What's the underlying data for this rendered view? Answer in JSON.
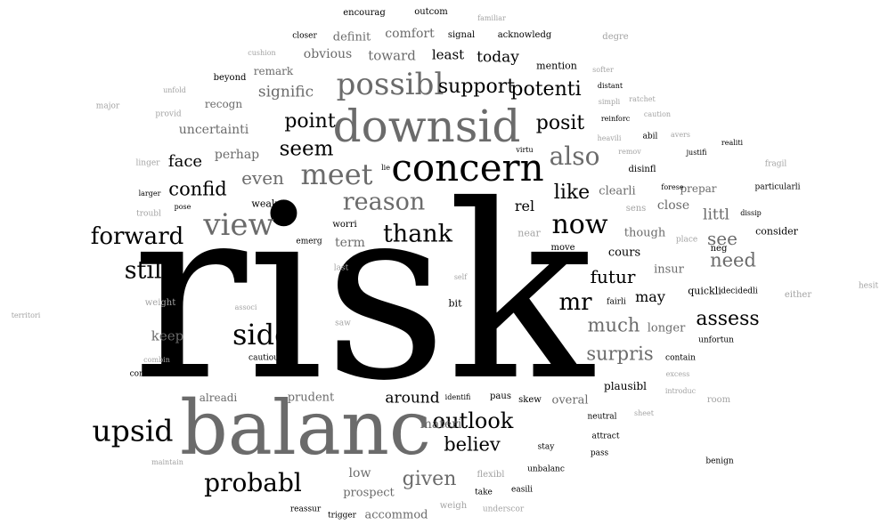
{
  "words": [
    {
      "text": "risk",
      "shade": "k"
    },
    {
      "text": "balanc",
      "shade": "g"
    },
    {
      "text": "downsid",
      "shade": "g"
    },
    {
      "text": "concern",
      "shade": "k"
    },
    {
      "text": "possibl",
      "shade": "g"
    },
    {
      "text": "meet",
      "shade": "g"
    },
    {
      "text": "view",
      "shade": "g"
    },
    {
      "text": "upsid",
      "shade": "k"
    },
    {
      "text": "reason",
      "shade": "g"
    },
    {
      "text": "thank",
      "shade": "k"
    },
    {
      "text": "now",
      "shade": "k"
    },
    {
      "text": "also",
      "shade": "g"
    },
    {
      "text": "forward",
      "shade": "k"
    },
    {
      "text": "side",
      "shade": "k"
    },
    {
      "text": "probabl",
      "shade": "k"
    },
    {
      "text": "outlook",
      "shade": "k"
    },
    {
      "text": "seem",
      "shade": "k"
    },
    {
      "text": "support",
      "shade": "k"
    },
    {
      "text": "potenti",
      "shade": "k"
    },
    {
      "text": "posit",
      "shade": "k"
    },
    {
      "text": "point",
      "shade": "k"
    },
    {
      "text": "confid",
      "shade": "k"
    },
    {
      "text": "even",
      "shade": "g"
    },
    {
      "text": "still",
      "shade": "k"
    },
    {
      "text": "assess",
      "shade": "k"
    },
    {
      "text": "much",
      "shade": "g"
    },
    {
      "text": "mr",
      "shade": "k"
    },
    {
      "text": "like",
      "shade": "k"
    },
    {
      "text": "need",
      "shade": "g"
    },
    {
      "text": "surpris",
      "shade": "g"
    },
    {
      "text": "see",
      "shade": "g"
    },
    {
      "text": "futur",
      "shade": "k"
    },
    {
      "text": "believ",
      "shade": "k"
    },
    {
      "text": "given",
      "shade": "g"
    },
    {
      "text": "face",
      "shade": "k"
    },
    {
      "text": "signific",
      "shade": "g"
    },
    {
      "text": "today",
      "shade": "k"
    },
    {
      "text": "around",
      "shade": "k"
    },
    {
      "text": "littl",
      "shade": "g"
    },
    {
      "text": "rel",
      "shade": "k"
    },
    {
      "text": "keep",
      "shade": "g"
    },
    {
      "text": "may",
      "shade": "k"
    },
    {
      "text": "uncertainti",
      "shade": "g"
    },
    {
      "text": "perhap",
      "shade": "g"
    },
    {
      "text": "toward",
      "shade": "g"
    },
    {
      "text": "least",
      "shade": "k"
    },
    {
      "text": "comfort",
      "shade": "g"
    },
    {
      "text": "obvious",
      "shade": "g"
    },
    {
      "text": "remark",
      "shade": "g"
    },
    {
      "text": "recogn",
      "shade": "g"
    },
    {
      "text": "definit",
      "shade": "g"
    },
    {
      "text": "term",
      "shade": "g"
    },
    {
      "text": "prudent",
      "shade": "g"
    },
    {
      "text": "alreadi",
      "shade": "g"
    },
    {
      "text": "materi",
      "shade": "g"
    },
    {
      "text": "overal",
      "shade": "g"
    },
    {
      "text": "low",
      "shade": "g"
    },
    {
      "text": "prospect",
      "shade": "g"
    },
    {
      "text": "accommod",
      "shade": "g"
    },
    {
      "text": "close",
      "shade": "g"
    },
    {
      "text": "clearli",
      "shade": "g"
    },
    {
      "text": "prepar",
      "shade": "g"
    },
    {
      "text": "though",
      "shade": "g"
    },
    {
      "text": "longer",
      "shade": "g"
    },
    {
      "text": "insur",
      "shade": "g"
    },
    {
      "text": "cours",
      "shade": "k"
    },
    {
      "text": "plausibl",
      "shade": "k"
    },
    {
      "text": "quickli",
      "shade": "k"
    },
    {
      "text": "consider",
      "shade": "k"
    },
    {
      "text": "mention",
      "shade": "k"
    },
    {
      "text": "acknowledg",
      "shade": "k"
    },
    {
      "text": "signal",
      "shade": "k"
    },
    {
      "text": "encourag",
      "shade": "k"
    },
    {
      "text": "outcom",
      "shade": "k"
    },
    {
      "text": "closer",
      "shade": "k"
    },
    {
      "text": "beyond",
      "shade": "k"
    },
    {
      "text": "lie",
      "shade": "k"
    },
    {
      "text": "weak",
      "shade": "k"
    },
    {
      "text": "worri",
      "shade": "k"
    },
    {
      "text": "emerg",
      "shade": "k"
    },
    {
      "text": "bit",
      "shade": "k"
    },
    {
      "text": "cautiou",
      "shade": "k"
    },
    {
      "text": "identifi",
      "shade": "k"
    },
    {
      "text": "paus",
      "shade": "k"
    },
    {
      "text": "skew",
      "shade": "k"
    },
    {
      "text": "stay",
      "shade": "k"
    },
    {
      "text": "unbalanc",
      "shade": "k"
    },
    {
      "text": "take",
      "shade": "k"
    },
    {
      "text": "easili",
      "shade": "k"
    },
    {
      "text": "reassur",
      "shade": "k"
    },
    {
      "text": "trigger",
      "shade": "k"
    },
    {
      "text": "neutral",
      "shade": "k"
    },
    {
      "text": "attract",
      "shade": "k"
    },
    {
      "text": "pass",
      "shade": "k"
    },
    {
      "text": "benign",
      "shade": "k"
    },
    {
      "text": "contain",
      "shade": "k"
    },
    {
      "text": "unfortun",
      "shade": "k"
    },
    {
      "text": "decidedli",
      "shade": "k"
    },
    {
      "text": "fairli",
      "shade": "k"
    },
    {
      "text": "move",
      "shade": "k"
    },
    {
      "text": "neg",
      "shade": "k"
    },
    {
      "text": "particularli",
      "shade": "k"
    },
    {
      "text": "disinfl",
      "shade": "k"
    },
    {
      "text": "justifi",
      "shade": "k"
    },
    {
      "text": "abil",
      "shade": "k"
    },
    {
      "text": "reinforc",
      "shade": "k"
    },
    {
      "text": "distant",
      "shade": "k"
    },
    {
      "text": "realiti",
      "shade": "k"
    },
    {
      "text": "forese",
      "shade": "k"
    },
    {
      "text": "dissip",
      "shade": "k"
    },
    {
      "text": "virtu",
      "shade": "k"
    },
    {
      "text": "confront",
      "shade": "k"
    },
    {
      "text": "larger",
      "shade": "k"
    },
    {
      "text": "pose",
      "shade": "k"
    },
    {
      "text": "near",
      "shade": "l"
    },
    {
      "text": "place",
      "shade": "l"
    },
    {
      "text": "sens",
      "shade": "l"
    },
    {
      "text": "room",
      "shade": "l"
    },
    {
      "text": "weight",
      "shade": "l"
    },
    {
      "text": "either",
      "shade": "l"
    },
    {
      "text": "hesit",
      "shade": "l"
    },
    {
      "text": "territori",
      "shade": "l"
    },
    {
      "text": "major",
      "shade": "l"
    },
    {
      "text": "unfold",
      "shade": "l"
    },
    {
      "text": "provid",
      "shade": "l"
    },
    {
      "text": "linger",
      "shade": "l"
    },
    {
      "text": "troubl",
      "shade": "l"
    },
    {
      "text": "combin",
      "shade": "l"
    },
    {
      "text": "maintain",
      "shade": "l"
    },
    {
      "text": "cushion",
      "shade": "l"
    },
    {
      "text": "familiar",
      "shade": "l"
    },
    {
      "text": "degre",
      "shade": "l"
    },
    {
      "text": "softer",
      "shade": "l"
    },
    {
      "text": "simpli",
      "shade": "l"
    },
    {
      "text": "ratchet",
      "shade": "l"
    },
    {
      "text": "caution",
      "shade": "l"
    },
    {
      "text": "heavili",
      "shade": "l"
    },
    {
      "text": "remov",
      "shade": "l"
    },
    {
      "text": "avers",
      "shade": "l"
    },
    {
      "text": "fragil",
      "shade": "l"
    },
    {
      "text": "excess",
      "shade": "l"
    },
    {
      "text": "introduc",
      "shade": "l"
    },
    {
      "text": "sheet",
      "shade": "l"
    },
    {
      "text": "flexibl",
      "shade": "l"
    },
    {
      "text": "underscor",
      "shade": "l"
    },
    {
      "text": "weigh",
      "shade": "l"
    },
    {
      "text": "saw",
      "shade": "l"
    },
    {
      "text": "self",
      "shade": "l"
    },
    {
      "text": "last",
      "shade": "l"
    },
    {
      "text": "associ",
      "shade": "l"
    }
  ]
}
